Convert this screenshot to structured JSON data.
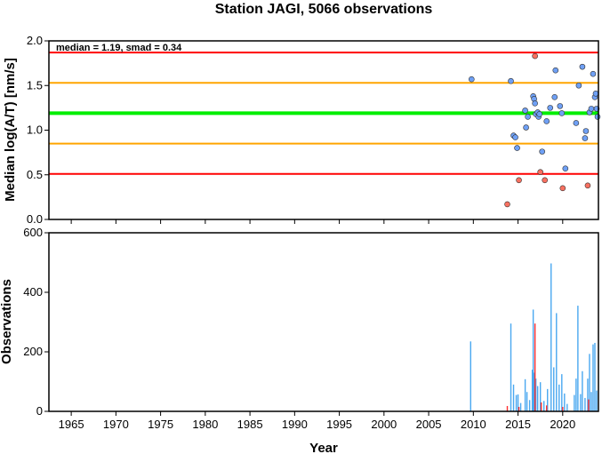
{
  "title": "Station JAGI, 5066 observations",
  "colors": {
    "red_line": "#ff0000",
    "orange_line": "#ffa500",
    "green_line": "#00ee00",
    "blue_point": "#6fa0f5",
    "red_point": "#f87060",
    "blue_bar": "#4aa8f0",
    "red_bar": "#ff3030"
  },
  "chart_data": [
    {
      "type": "scatter",
      "ylabel": "Median log(A/T) [nm/s]",
      "xlim": [
        1962.5,
        2024
      ],
      "ylim": [
        0,
        2
      ],
      "y_ticks": [
        "0.0",
        "0.5",
        "1.0",
        "1.5",
        "2.0"
      ],
      "annotation": "median = 1.19, smad = 0.34",
      "reference_lines": [
        {
          "value": 1.87,
          "color": "red"
        },
        {
          "value": 1.53,
          "color": "orange"
        },
        {
          "value": 1.19,
          "color": "green"
        },
        {
          "value": 0.85,
          "color": "orange"
        },
        {
          "value": 0.51,
          "color": "red"
        }
      ],
      "series": [
        {
          "color": "blue",
          "points": [
            [
              2009.8,
              1.57
            ],
            [
              2014.2,
              1.55
            ],
            [
              2014.5,
              0.94
            ],
            [
              2014.7,
              0.92
            ],
            [
              2014.9,
              0.8
            ],
            [
              2015.8,
              1.22
            ],
            [
              2015.9,
              1.03
            ],
            [
              2016.1,
              1.15
            ],
            [
              2016.7,
              1.38
            ],
            [
              2016.8,
              1.35
            ],
            [
              2016.9,
              1.3
            ],
            [
              2017.0,
              1.18
            ],
            [
              2017.2,
              1.2
            ],
            [
              2017.3,
              1.15
            ],
            [
              2017.4,
              1.18
            ],
            [
              2017.7,
              0.76
            ],
            [
              2018.2,
              1.1
            ],
            [
              2018.6,
              1.25
            ],
            [
              2019.1,
              1.37
            ],
            [
              2019.2,
              1.67
            ],
            [
              2019.7,
              1.27
            ],
            [
              2019.9,
              1.19
            ],
            [
              2020.3,
              0.57
            ],
            [
              2021.5,
              1.08
            ],
            [
              2021.8,
              1.5
            ],
            [
              2022.2,
              1.71
            ],
            [
              2022.5,
              0.91
            ],
            [
              2022.6,
              0.99
            ],
            [
              2023.0,
              1.2
            ],
            [
              2023.2,
              1.24
            ],
            [
              2023.4,
              1.63
            ],
            [
              2023.6,
              1.37
            ],
            [
              2023.7,
              1.41
            ],
            [
              2023.8,
              1.24
            ],
            [
              2023.9,
              1.15
            ]
          ]
        },
        {
          "color": "red",
          "points": [
            [
              2013.8,
              0.17
            ],
            [
              2015.1,
              0.44
            ],
            [
              2016.9,
              1.83
            ],
            [
              2017.5,
              0.53
            ],
            [
              2018.0,
              0.44
            ],
            [
              2020.0,
              0.35
            ],
            [
              2022.8,
              0.38
            ]
          ]
        }
      ]
    },
    {
      "type": "bar",
      "ylabel": "Observations",
      "xlabel": "Year",
      "xlim": [
        1962.5,
        2024
      ],
      "ylim": [
        0,
        600
      ],
      "x_ticks": [
        "1965",
        "1970",
        "1975",
        "1980",
        "1985",
        "1990",
        "1995",
        "2000",
        "2005",
        "2010",
        "2015",
        "2020"
      ],
      "y_ticks": [
        "0",
        "200",
        "400",
        "600"
      ],
      "series": [
        {
          "color": "blue",
          "bars": [
            [
              2009.7,
              235
            ],
            [
              2014.2,
              295
            ],
            [
              2014.5,
              90
            ],
            [
              2014.8,
              55
            ],
            [
              2015.0,
              57
            ],
            [
              2015.3,
              28
            ],
            [
              2015.8,
              108
            ],
            [
              2016.0,
              65
            ],
            [
              2016.3,
              38
            ],
            [
              2016.6,
              140
            ],
            [
              2016.7,
              342
            ],
            [
              2016.8,
              130
            ],
            [
              2017.0,
              110
            ],
            [
              2017.2,
              85
            ],
            [
              2017.5,
              98
            ],
            [
              2017.9,
              35
            ],
            [
              2018.3,
              75
            ],
            [
              2018.7,
              497
            ],
            [
              2019.0,
              148
            ],
            [
              2019.3,
              330
            ],
            [
              2019.6,
              90
            ],
            [
              2019.9,
              125
            ],
            [
              2020.2,
              60
            ],
            [
              2020.5,
              25
            ],
            [
              2021.3,
              55
            ],
            [
              2021.5,
              110
            ],
            [
              2021.7,
              355
            ],
            [
              2022.0,
              58
            ],
            [
              2022.2,
              135
            ],
            [
              2022.5,
              45
            ],
            [
              2022.8,
              110
            ],
            [
              2023.0,
              193
            ],
            [
              2023.2,
              65
            ],
            [
              2023.4,
              225
            ],
            [
              2023.6,
              230
            ],
            [
              2023.8,
              70
            ]
          ]
        },
        {
          "color": "red",
          "bars": [
            [
              2013.8,
              18
            ],
            [
              2015.1,
              15
            ],
            [
              2016.9,
              295
            ],
            [
              2017.6,
              30
            ],
            [
              2018.2,
              20
            ],
            [
              2020.0,
              15
            ],
            [
              2022.9,
              40
            ]
          ]
        }
      ]
    }
  ]
}
